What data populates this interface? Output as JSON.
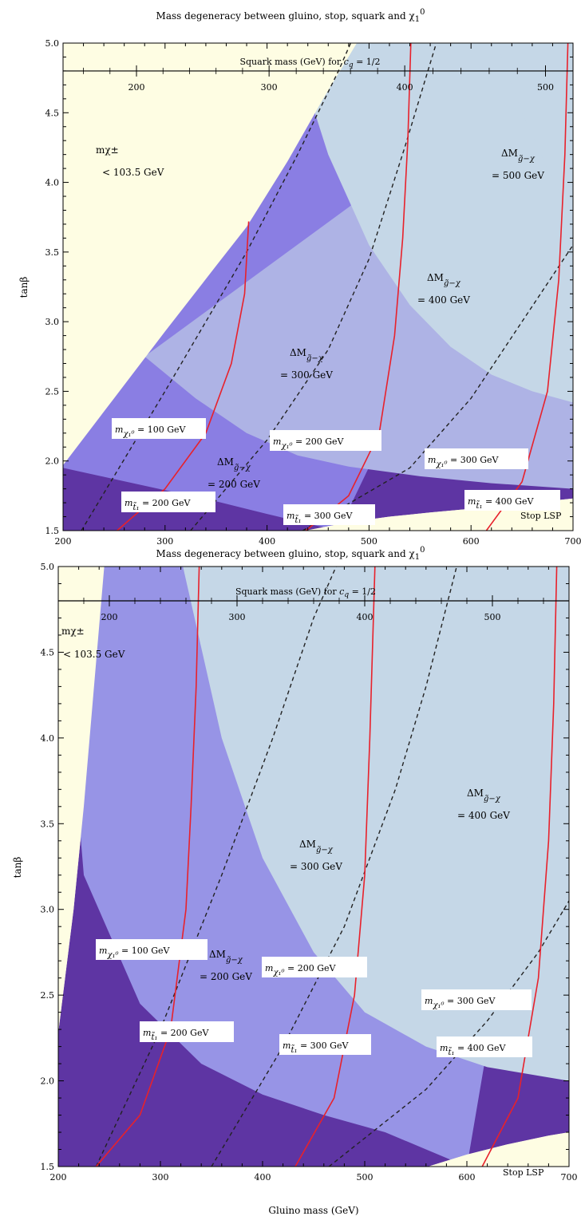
{
  "chart_data": [
    {
      "type": "area",
      "title": "Mass degeneracy between gluino, stop, squark and χ₁⁰",
      "xlabel": "Gluino mass (GeV)",
      "ylabel": "tanβ",
      "xlim": [
        200,
        700
      ],
      "ylim": [
        1.5,
        5.0
      ],
      "x_ticks": [
        "200",
        "300",
        "400",
        "500",
        "600",
        "700"
      ],
      "y_ticks": [
        "1.5",
        "2.0",
        "2.5",
        "3.0",
        "3.5",
        "4.0",
        "4.5",
        "5.0"
      ],
      "top_axis": {
        "label": "Squark mass (GeV) for c_q = 1/2",
        "tan_beta": 4.8,
        "ticks": [
          {
            "label": "200",
            "gluino": 272
          },
          {
            "label": "300",
            "gluino": 402
          },
          {
            "label": "400",
            "gluino": 535
          },
          {
            "label": "500",
            "gluino": 673
          }
        ]
      },
      "bands": [
        {
          "label": "mχ± < 103.5 GeV",
          "color": "#fefde3",
          "boundary": [
            [
              200,
              1.97
            ],
            [
              250,
              2.45
            ],
            [
              300,
              2.93
            ],
            [
              350,
              3.4
            ],
            [
              380,
              3.68
            ],
            [
              420,
              4.15
            ],
            [
              455,
              4.6
            ],
            [
              488,
              5.0
            ]
          ]
        },
        {
          "label": "ΔM g̃-χ = 200 GeV",
          "color": "#5e35a3",
          "boundary": [
            [
              200,
              1.95
            ],
            [
              250,
              1.87
            ],
            [
              300,
              1.79
            ],
            [
              350,
              1.71
            ],
            [
              400,
              1.62
            ],
            [
              440,
              1.55
            ],
            [
              470,
              1.5
            ]
          ]
        },
        {
          "label": "ΔM g̃-χ = 300 GeV",
          "color": "#8a7ee3",
          "boundary": [
            [
              280,
              2.75
            ],
            [
              330,
              2.45
            ],
            [
              380,
              2.2
            ],
            [
              430,
              2.04
            ],
            [
              480,
              1.96
            ],
            [
              550,
              1.89
            ],
            [
              620,
              1.84
            ],
            [
              700,
              1.8
            ]
          ]
        },
        {
          "label": "ΔM g̃-χ = 400 GeV",
          "color": "#aeb3e5",
          "boundary": [
            [
              425,
              5.0
            ],
            [
              460,
              4.2
            ],
            [
              500,
              3.55
            ],
            [
              540,
              3.12
            ],
            [
              580,
              2.82
            ],
            [
              620,
              2.62
            ],
            [
              660,
              2.5
            ],
            [
              700,
              2.42
            ]
          ]
        },
        {
          "label": "ΔM g̃-χ = 500 GeV",
          "color": "#c5d7e7",
          "boundary": [
            [
              625,
              5.0
            ],
            [
              650,
              4.5
            ],
            [
              675,
              4.1
            ],
            [
              700,
              3.75
            ]
          ]
        },
        {
          "label": "Stop LSP",
          "color": "#fefde3",
          "boundary": [
            [
              438,
              1.5
            ],
            [
              480,
              1.56
            ],
            [
              520,
              1.6
            ],
            [
              560,
              1.63
            ],
            [
              620,
              1.67
            ],
            [
              660,
              1.7
            ],
            [
              700,
              1.73
            ]
          ]
        }
      ],
      "stop_mass_contours": [
        {
          "label": "200 GeV",
          "points": [
            [
              253,
              1.5
            ],
            [
              300,
              1.8
            ],
            [
              340,
              2.2
            ],
            [
              365,
              2.7
            ],
            [
              378,
              3.2
            ],
            [
              382,
              3.72
            ]
          ]
        },
        {
          "label": "300 GeV",
          "points": [
            [
              438,
              1.5
            ],
            [
              480,
              1.75
            ],
            [
              510,
              2.2
            ],
            [
              525,
              2.9
            ],
            [
              533,
              3.6
            ],
            [
              538,
              4.3
            ],
            [
              541,
              5.0
            ]
          ]
        },
        {
          "label": "400 GeV",
          "points": [
            [
              615,
              1.5
            ],
            [
              650,
              1.85
            ],
            [
              675,
              2.5
            ],
            [
              686,
              3.3
            ],
            [
              692,
              4.2
            ],
            [
              695,
              5.0
            ]
          ]
        }
      ],
      "neutralino_mass_contours": [
        {
          "label": "100 GeV",
          "points": [
            [
              218,
              1.5
            ],
            [
              300,
              2.5
            ],
            [
              380,
              3.5
            ],
            [
              430,
              4.2
            ],
            [
              470,
              4.8
            ],
            [
              482,
              5.0
            ]
          ]
        },
        {
          "label": "200 GeV",
          "points": [
            [
              325,
              1.5
            ],
            [
              400,
              2.15
            ],
            [
              460,
              2.8
            ],
            [
              500,
              3.45
            ],
            [
              535,
              4.25
            ],
            [
              566,
              5.0
            ]
          ]
        },
        {
          "label": "300 GeV",
          "points": [
            [
              435,
              1.5
            ],
            [
              540,
              1.95
            ],
            [
              600,
              2.45
            ],
            [
              650,
              3.0
            ],
            [
              700,
              3.55
            ]
          ]
        }
      ],
      "annotations": {
        "chargino": [
          "mχ±",
          "< 103.5 GeV"
        ],
        "dm_500": [
          "ΔM",
          "g̃−χ",
          "=  500 GeV"
        ],
        "dm_400": [
          "ΔM",
          "g̃−χ",
          "=  400 GeV"
        ],
        "dm_300": [
          "ΔM",
          "g̃−χ",
          "=  300 GeV"
        ],
        "dm_200": [
          "ΔM",
          "g̃−χ",
          "=  200 GeV"
        ],
        "chi_100": [
          "m",
          "χ₁⁰",
          "= 100 GeV"
        ],
        "chi_200": [
          "m",
          "χ₁⁰",
          "= 200 GeV"
        ],
        "chi_300": [
          "m",
          "χ₁⁰",
          "= 300 GeV"
        ],
        "stop_200": [
          "m",
          "t̃₁",
          "= 200 GeV"
        ],
        "stop_300": [
          "m",
          "t̃₁",
          "= 300 GeV"
        ],
        "stop_400": [
          "m",
          "t̃₁",
          "= 400 GeV"
        ],
        "stop_lsp": "Stop LSP"
      }
    },
    {
      "type": "area",
      "title": "Mass degeneracy between gluino, stop, squark and χ₁⁰",
      "xlabel": "Gluino mass (GeV)",
      "ylabel": "tanβ",
      "xlim": [
        200,
        700
      ],
      "ylim": [
        1.5,
        5.0
      ],
      "x_ticks": [
        "200",
        "300",
        "400",
        "500",
        "600",
        "700"
      ],
      "y_ticks": [
        "1.5",
        "2.0",
        "2.5",
        "3.0",
        "3.5",
        "4.0",
        "4.5",
        "5.0"
      ],
      "top_axis": {
        "label": "Squark mass (GeV) for c_q = 1/2",
        "tan_beta": 4.8,
        "ticks": [
          {
            "label": "200",
            "gluino": 250
          },
          {
            "label": "300",
            "gluino": 375
          },
          {
            "label": "400",
            "gluino": 500
          },
          {
            "label": "500",
            "gluino": 625
          }
        ]
      },
      "bands": [
        {
          "label": "mχ± < 103.5 GeV",
          "color": "#fefde3",
          "boundary": [
            [
              200,
              2.28
            ],
            [
              215,
              3.0
            ],
            [
              225,
              3.6
            ],
            [
              235,
              4.3
            ],
            [
              245,
              5.0
            ]
          ]
        },
        {
          "label": "ΔM g̃-χ = 200 GeV",
          "color": "#5e35a3",
          "boundary": [
            [
              225,
              3.2
            ],
            [
              280,
              2.45
            ],
            [
              340,
              2.1
            ],
            [
              400,
              1.92
            ],
            [
              460,
              1.8
            ],
            [
              520,
              1.7
            ],
            [
              560,
              1.6
            ],
            [
              600,
              1.5
            ]
          ]
        },
        {
          "label": "ΔM g̃-χ = 300 GeV",
          "color": "#9794e6",
          "boundary": [
            [
              322,
              5.0
            ],
            [
              360,
              4.0
            ],
            [
              400,
              3.3
            ],
            [
              450,
              2.75
            ],
            [
              500,
              2.4
            ],
            [
              560,
              2.2
            ],
            [
              620,
              2.08
            ],
            [
              700,
              2.0
            ]
          ]
        },
        {
          "label": "ΔM g̃-χ = 400 GeV",
          "color": "#c5d7e7",
          "boundary": [
            [
              597,
              5.0
            ],
            [
              630,
              4.2
            ],
            [
              660,
              3.65
            ],
            [
              700,
              3.2
            ]
          ]
        },
        {
          "label": "Stop LSP",
          "color": "#fefde3",
          "boundary": [
            [
              562,
              1.5
            ],
            [
              600,
              1.57
            ],
            [
              640,
              1.63
            ],
            [
              680,
              1.68
            ],
            [
              700,
              1.7
            ]
          ]
        }
      ],
      "stop_mass_contours": [
        {
          "label": "200 GeV",
          "points": [
            [
              237,
              1.5
            ],
            [
              280,
              1.8
            ],
            [
              310,
              2.3
            ],
            [
              325,
              3.0
            ],
            [
              330,
              3.6
            ],
            [
              335,
              4.3
            ],
            [
              338,
              5.0
            ]
          ]
        },
        {
          "label": "300 GeV",
          "points": [
            [
              432,
              1.5
            ],
            [
              470,
              1.9
            ],
            [
              490,
              2.5
            ],
            [
              500,
              3.2
            ],
            [
              505,
              4.0
            ],
            [
              510,
              5.0
            ]
          ]
        },
        {
          "label": "400 GeV",
          "points": [
            [
              615,
              1.5
            ],
            [
              650,
              1.9
            ],
            [
              670,
              2.6
            ],
            [
              680,
              3.4
            ],
            [
              685,
              4.2
            ],
            [
              688,
              5.0
            ]
          ]
        }
      ],
      "neutralino_mass_contours": [
        {
          "label": "100 GeV",
          "points": [
            [
              237,
              1.5
            ],
            [
              300,
              2.3
            ],
            [
              360,
              3.2
            ],
            [
              410,
              4.0
            ],
            [
              450,
              4.7
            ],
            [
              472,
              5.0
            ]
          ]
        },
        {
          "label": "200 GeV",
          "points": [
            [
              350,
              1.5
            ],
            [
              420,
              2.2
            ],
            [
              480,
              2.9
            ],
            [
              530,
              3.7
            ],
            [
              560,
              4.3
            ],
            [
              590,
              5.0
            ]
          ]
        },
        {
          "label": "300 GeV",
          "points": [
            [
              465,
              1.5
            ],
            [
              560,
              1.95
            ],
            [
              620,
              2.35
            ],
            [
              670,
              2.75
            ],
            [
              700,
              3.05
            ]
          ]
        }
      ],
      "annotations": {
        "chargino": [
          "mχ±",
          "< 103.5 GeV"
        ],
        "dm_400": [
          "ΔM",
          "g̃−χ",
          "=  400 GeV"
        ],
        "dm_300": [
          "ΔM",
          "g̃−χ",
          "=  300 GeV"
        ],
        "dm_200": [
          "ΔM",
          "g̃−χ",
          "=  200 GeV"
        ],
        "chi_100": [
          "m",
          "χ₁⁰",
          "= 100 GeV"
        ],
        "chi_200": [
          "m",
          "χ₁⁰",
          "= 200 GeV"
        ],
        "chi_300": [
          "m",
          "χ₁⁰",
          "= 300 GeV"
        ],
        "stop_200": [
          "m",
          "t̃₁",
          "= 200 GeV"
        ],
        "stop_300": [
          "m",
          "t̃₁",
          "= 300 GeV"
        ],
        "stop_400": [
          "m",
          "t̃₁",
          "= 400 GeV"
        ],
        "stop_lsp": "Stop LSP"
      }
    }
  ]
}
